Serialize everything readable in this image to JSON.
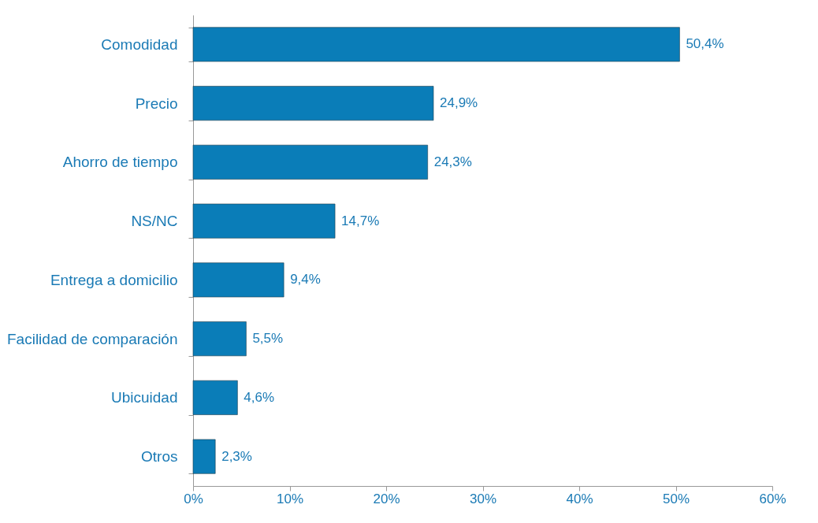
{
  "chart_data": {
    "type": "bar",
    "orientation": "horizontal",
    "categories": [
      "Comodidad",
      "Precio",
      "Ahorro de tiempo",
      "NS/NC",
      "Entrega a domicilio",
      "Facilidad de comparación",
      "Ubicuidad",
      "Otros"
    ],
    "values": [
      50.4,
      24.9,
      24.3,
      14.7,
      9.4,
      5.5,
      4.6,
      2.3
    ],
    "value_labels": [
      "50,4%",
      "24,9%",
      "24,3%",
      "14,7%",
      "9,4%",
      "5,5%",
      "4,6%",
      "2,3%"
    ],
    "color": "#0a7db8",
    "xlim": [
      0,
      60
    ],
    "xticks": [
      {
        "value": 0,
        "label": "0%"
      },
      {
        "value": 10,
        "label": "10%"
      },
      {
        "value": 20,
        "label": "20%"
      },
      {
        "value": 30,
        "label": "30%"
      },
      {
        "value": 40,
        "label": "40%"
      },
      {
        "value": 50,
        "label": "50%"
      },
      {
        "value": 60,
        "label": "60%"
      }
    ],
    "grid": false
  }
}
